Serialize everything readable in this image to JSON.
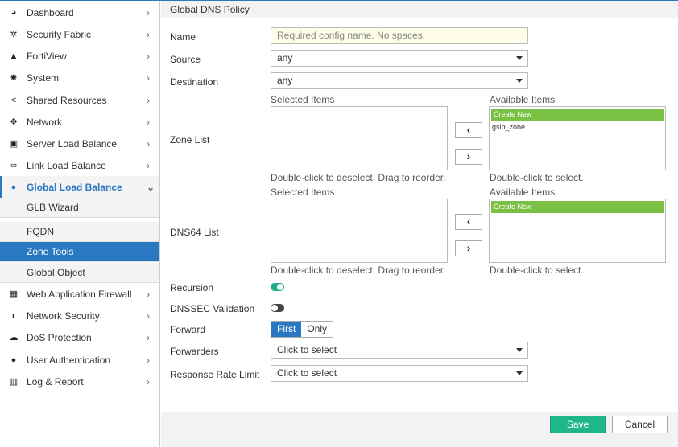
{
  "sidebar": {
    "items": [
      {
        "label": "Dashboard",
        "icon": "dashboard-icon"
      },
      {
        "label": "Security Fabric",
        "icon": "security-fabric-icon"
      },
      {
        "label": "FortiView",
        "icon": "fortiview-icon"
      },
      {
        "label": "System",
        "icon": "gear-icon"
      },
      {
        "label": "Shared Resources",
        "icon": "share-icon"
      },
      {
        "label": "Network",
        "icon": "network-icon"
      },
      {
        "label": "Server Load Balance",
        "icon": "server-load-balance-icon"
      },
      {
        "label": "Link Load Balance",
        "icon": "link-icon"
      },
      {
        "label": "Global Load Balance",
        "icon": "globe-icon"
      },
      {
        "label": "Web Application Firewall",
        "icon": "waf-icon"
      },
      {
        "label": "Network Security",
        "icon": "shield-icon"
      },
      {
        "label": "DoS Protection",
        "icon": "cloud-icon"
      },
      {
        "label": "User Authentication",
        "icon": "user-icon"
      },
      {
        "label": "Log & Report",
        "icon": "report-icon"
      }
    ],
    "subitems": [
      {
        "label": "GLB Wizard"
      },
      {
        "label": "FQDN"
      },
      {
        "label": "Zone Tools",
        "active": true
      },
      {
        "label": "Global Object"
      }
    ]
  },
  "header": {
    "title": "Global DNS Policy"
  },
  "form": {
    "name_label": "Name",
    "name_placeholder": "Required config name. No spaces.",
    "source_label": "Source",
    "source_value": "any",
    "destination_label": "Destination",
    "destination_value": "any",
    "zone_label": "Zone List",
    "dns64_label": "DNS64 List",
    "selected_items": "Selected Items",
    "available_items": "Available Items",
    "deselect_hint": "Double-click to deselect. Drag to reorder.",
    "select_hint": "Double-click to select.",
    "create_new": "Create New",
    "zone_available": [
      "gslb_zone"
    ],
    "recursion_label": "Recursion",
    "recursion_on": true,
    "dnssec_label": "DNSSEC Validation",
    "dnssec_on": false,
    "forward_label": "Forward",
    "forward_options": [
      "First",
      "Only"
    ],
    "forward_selected": "First",
    "forwarders_label": "Forwarders",
    "forwarders_value": "Click to select",
    "rrl_label": "Response Rate Limit",
    "rrl_value": "Click to select"
  },
  "footer": {
    "save": "Save",
    "cancel": "Cancel"
  },
  "colors": {
    "accent": "#2b78c2",
    "green": "#7ac143",
    "save": "#1fb68a",
    "toggle_on": "#1aae8a"
  }
}
